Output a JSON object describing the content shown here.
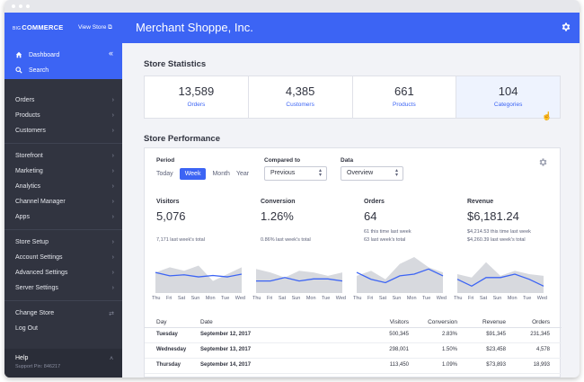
{
  "sidebar": {
    "logo_prefix": "BIG",
    "logo_main": "COMMERCE",
    "view_store": "View Store ⧉",
    "favorites": [
      {
        "label": "Dashboard",
        "icon": "home-icon"
      },
      {
        "label": "Search",
        "icon": "search-icon"
      }
    ],
    "groups": [
      [
        "Orders",
        "Products",
        "Customers"
      ],
      [
        "Storefront",
        "Marketing",
        "Analytics",
        "Channel Manager",
        "Apps"
      ],
      [
        "Store Setup",
        "Account Settings",
        "Advanced Settings",
        "Server Settings"
      ],
      [
        "Change Store",
        "Log Out"
      ]
    ],
    "help_title": "Help",
    "help_pin": "Support Pin: 846217"
  },
  "header": {
    "title": "Merchant Shoppe, Inc."
  },
  "store_statistics": {
    "title": "Store Statistics",
    "items": [
      {
        "value": "13,589",
        "label": "Orders"
      },
      {
        "value": "4,385",
        "label": "Customers"
      },
      {
        "value": "661",
        "label": "Products"
      },
      {
        "value": "104",
        "label": "Categories"
      }
    ]
  },
  "store_performance": {
    "title": "Store Performance",
    "period_label": "Period",
    "period_options": [
      "Today",
      "Week",
      "Month",
      "Year"
    ],
    "period_selected": "Week",
    "compared_label": "Compared to",
    "compared_value": "Previous",
    "data_label": "Data",
    "data_value": "Overview",
    "metrics": [
      {
        "label": "Visitors",
        "value": "5,076",
        "sub": [
          "7,171 last week's total"
        ]
      },
      {
        "label": "Conversion",
        "value": "1.26%",
        "sub": [
          "0.86% last week's total"
        ]
      },
      {
        "label": "Orders",
        "value": "64",
        "sub": [
          "61 this time last week",
          "63 last week's total"
        ]
      },
      {
        "label": "Revenue",
        "value": "$6,181.24",
        "sub": [
          "$4,214.53 this time last week",
          "$4,260.39 last week's total"
        ]
      }
    ],
    "days": [
      "Thu",
      "Fri",
      "Sat",
      "Sun",
      "Mon",
      "Tue",
      "Wed"
    ],
    "charts": [
      {
        "current": [
          0.55,
          0.45,
          0.48,
          0.42,
          0.46,
          0.42,
          0.5
        ],
        "previous": [
          0.55,
          0.7,
          0.6,
          0.75,
          0.3,
          0.5,
          0.7
        ]
      },
      {
        "current": [
          0.3,
          0.3,
          0.4,
          0.3,
          0.36,
          0.36,
          0.3
        ],
        "previous": [
          0.65,
          0.55,
          0.4,
          0.6,
          0.55,
          0.45,
          0.55
        ]
      },
      {
        "current": [
          0.55,
          0.35,
          0.25,
          0.45,
          0.5,
          0.65,
          0.45
        ],
        "previous": [
          0.45,
          0.6,
          0.35,
          0.8,
          1.0,
          0.7,
          0.55
        ]
      },
      {
        "current": [
          0.35,
          0.15,
          0.4,
          0.4,
          0.5,
          0.35,
          0.15
        ],
        "previous": [
          0.5,
          0.4,
          0.85,
          0.45,
          0.6,
          0.5,
          0.45
        ]
      }
    ],
    "table": {
      "headers": [
        "Day",
        "Date",
        "Visitors",
        "Conversion",
        "Revenue",
        "Orders"
      ],
      "rows": [
        [
          "Tuesday",
          "September 12, 2017",
          "500,345",
          "2.83%",
          "$91,345",
          "231,345"
        ],
        [
          "Wednesday",
          "September 13, 2017",
          "298,001",
          "1.50%",
          "$23,458",
          "4,578"
        ],
        [
          "Thursday",
          "September 14, 2017",
          "113,450",
          "1.09%",
          "$73,893",
          "18,993"
        ]
      ]
    }
  },
  "colors": {
    "accent": "#3c64f4",
    "sidebar": "#313440",
    "chart_line": "#3c64f4",
    "chart_area": "#d7d9de"
  }
}
